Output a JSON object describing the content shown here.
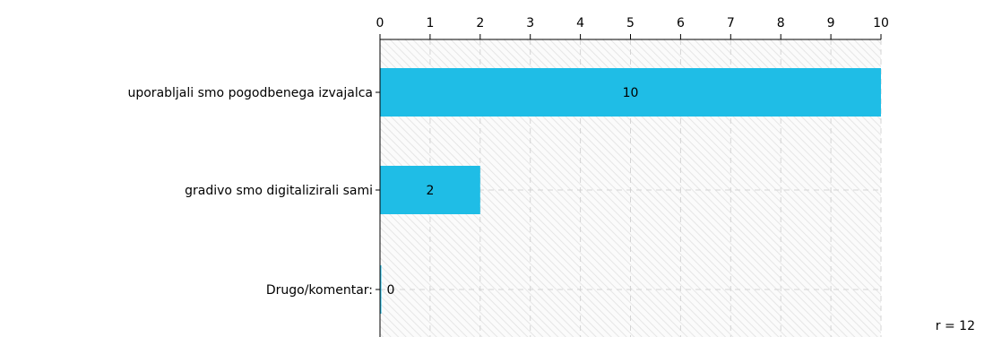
{
  "chart_data": {
    "type": "bar",
    "orientation": "horizontal",
    "categories": [
      "uporabljali smo pogodbenega izvajalca",
      "gradivo smo digitalizirali sami",
      "Drugo/komentar:"
    ],
    "values": [
      10,
      2,
      0
    ],
    "data_labels": [
      "10",
      "2",
      "0"
    ],
    "xlim": [
      0,
      10
    ],
    "x_ticks": [
      "0",
      "1",
      "2",
      "3",
      "4",
      "5",
      "6",
      "7",
      "8",
      "9",
      "10"
    ],
    "x_axis_position": "top",
    "grid": true,
    "bar_color": "#1fbde6",
    "plot_background": "hatched light gray"
  },
  "note": "r = 12"
}
